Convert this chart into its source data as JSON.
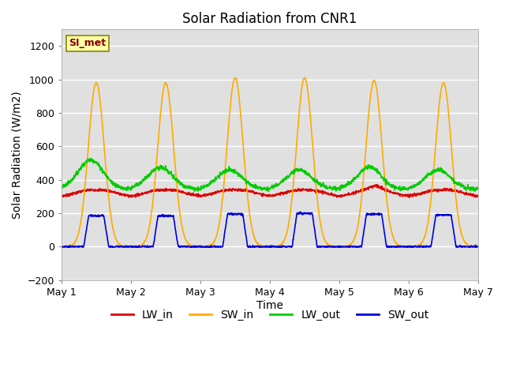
{
  "title": "Solar Radiation from CNR1",
  "xlabel": "Time",
  "ylabel": "Solar Radiation (W/m2)",
  "ylim": [
    -200,
    1300
  ],
  "yticks": [
    -200,
    0,
    200,
    400,
    600,
    800,
    1000,
    1200
  ],
  "xlim_days": [
    0,
    6
  ],
  "x_tick_labels": [
    "May 1",
    "May 2",
    "May 3",
    "May 4",
    "May 5",
    "May 6",
    "May 7"
  ],
  "colors": {
    "LW_in": "#dd0000",
    "SW_in": "#ffaa00",
    "LW_out": "#00cc00",
    "SW_out": "#0000dd"
  },
  "station_label": "SI_met",
  "station_label_color": "#880000",
  "station_box_facecolor": "#ffffaa",
  "station_box_edgecolor": "#888800",
  "fig_bg_color": "#ffffff",
  "plot_bg_color": "#e0e0e0",
  "grid_color": "#ffffff",
  "n_days": 6,
  "points_per_day": 288,
  "LW_in_base": 300,
  "LW_out_base": 345,
  "SW_in_peaks": [
    980,
    980,
    1010,
    1010,
    995,
    980
  ],
  "SW_out_flat": [
    185,
    185,
    195,
    200,
    195,
    190
  ],
  "linewidth": 1.2
}
